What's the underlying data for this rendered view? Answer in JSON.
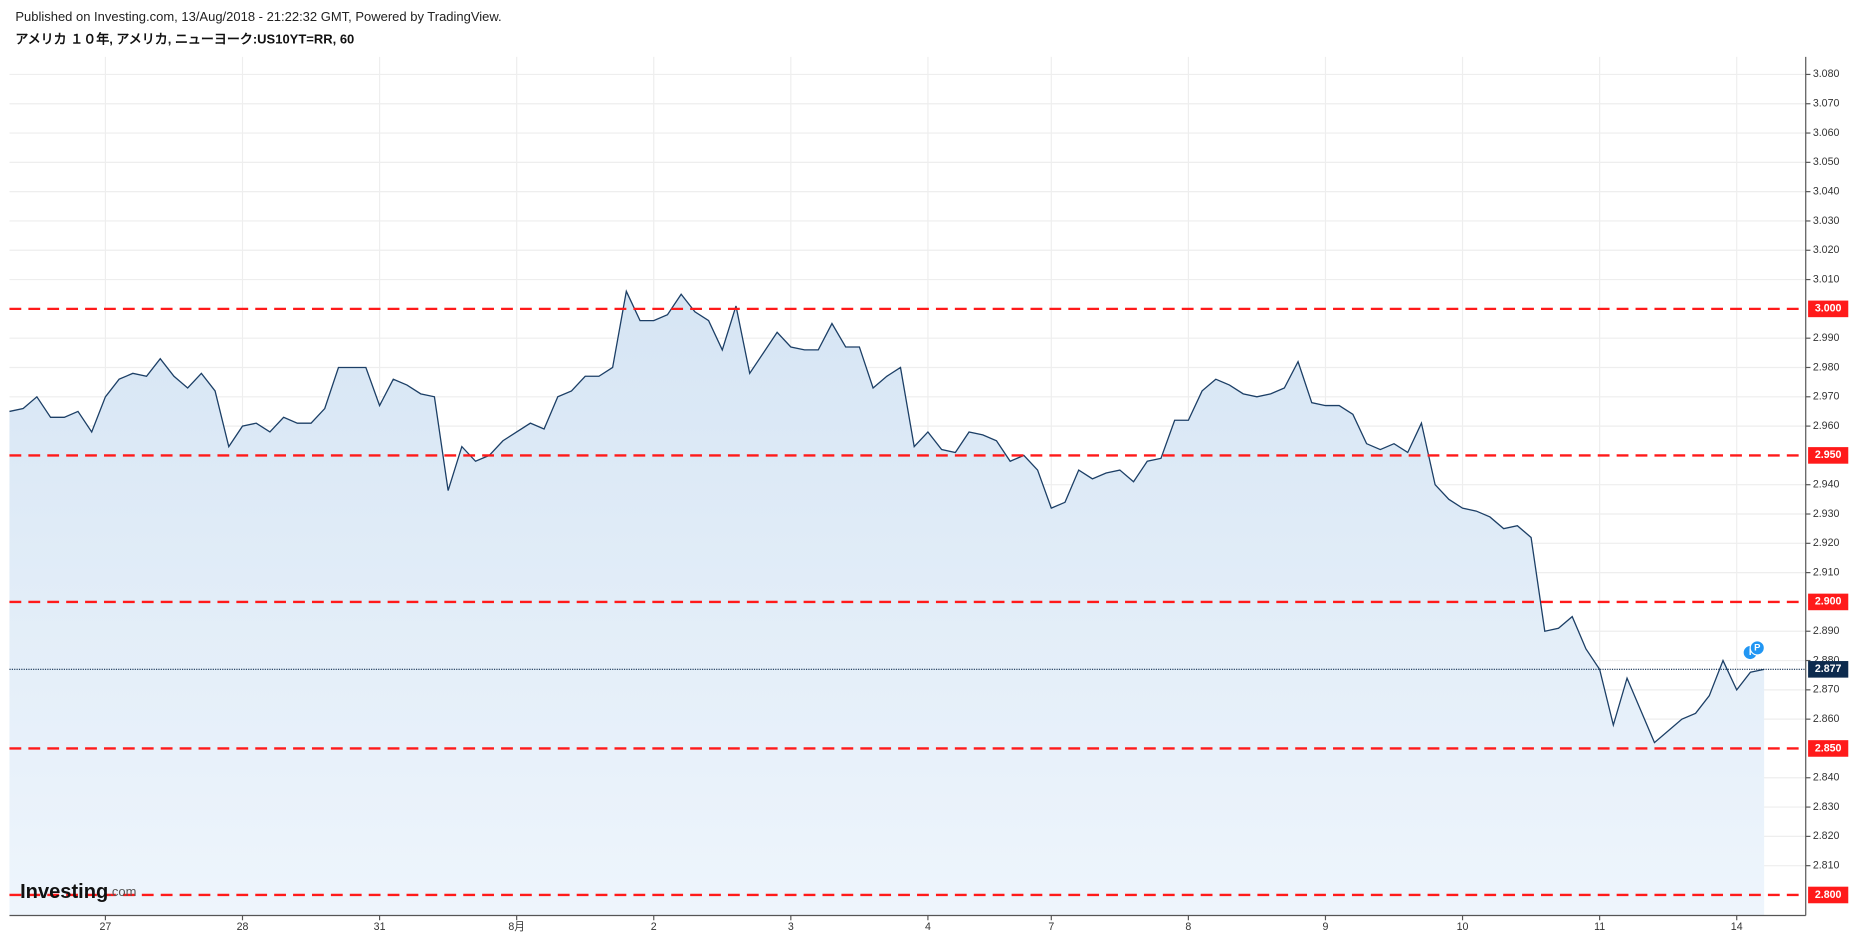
{
  "header": {
    "published": "Published on Investing.com, 13/Aug/2018 - 21:22:32 GMT, Powered by TradingView.",
    "symbol": "アメリカ １０年, アメリカ, ニューヨーク:US10YT=RR, 60"
  },
  "chart_data": {
    "type": "area",
    "color": "#1c3f66",
    "fill": "#dce9f6",
    "categories": [
      null,
      null,
      null,
      null,
      null,
      null,
      null,
      "27",
      null,
      null,
      null,
      null,
      null,
      null,
      null,
      null,
      null,
      "28",
      null,
      null,
      null,
      null,
      null,
      null,
      null,
      null,
      null,
      "31",
      null,
      null,
      null,
      null,
      null,
      null,
      null,
      null,
      null,
      "8月",
      null,
      null,
      null,
      null,
      null,
      null,
      null,
      null,
      null,
      "2",
      null,
      null,
      null,
      null,
      null,
      null,
      null,
      null,
      null,
      "3",
      null,
      null,
      null,
      null,
      null,
      null,
      null,
      null,
      null,
      "4",
      null,
      null,
      null,
      null,
      null,
      null,
      null,
      null,
      "7",
      null,
      null,
      null,
      null,
      null,
      null,
      null,
      null,
      null,
      "8",
      null,
      null,
      null,
      null,
      null,
      null,
      null,
      null,
      null,
      "9",
      null,
      null,
      null,
      null,
      null,
      null,
      null,
      null,
      null,
      "10",
      null,
      null,
      null,
      null,
      null,
      null,
      null,
      null,
      null,
      "11",
      null,
      null,
      null,
      null,
      null,
      null,
      null,
      null,
      null,
      "14",
      null,
      null
    ],
    "values": [
      2.965,
      2.966,
      2.97,
      2.963,
      2.963,
      2.965,
      2.958,
      2.97,
      2.976,
      2.978,
      2.977,
      2.983,
      2.977,
      2.973,
      2.978,
      2.972,
      2.953,
      2.96,
      2.961,
      2.958,
      2.963,
      2.961,
      2.961,
      2.966,
      2.98,
      2.98,
      2.98,
      2.967,
      2.976,
      2.974,
      2.971,
      2.97,
      2.938,
      2.953,
      2.948,
      2.95,
      2.955,
      2.958,
      2.961,
      2.959,
      2.97,
      2.972,
      2.977,
      2.977,
      2.98,
      3.006,
      2.996,
      2.996,
      2.998,
      3.005,
      2.999,
      2.996,
      2.986,
      3.001,
      2.978,
      2.985,
      2.992,
      2.987,
      2.986,
      2.986,
      2.995,
      2.987,
      2.987,
      2.973,
      2.977,
      2.98,
      2.953,
      2.958,
      2.952,
      2.951,
      2.958,
      2.957,
      2.955,
      2.948,
      2.95,
      2.945,
      2.932,
      2.934,
      2.945,
      2.942,
      2.944,
      2.945,
      2.941,
      2.948,
      2.949,
      2.962,
      2.962,
      2.972,
      2.976,
      2.974,
      2.971,
      2.97,
      2.971,
      2.973,
      2.982,
      2.968,
      2.967,
      2.967,
      2.964,
      2.954,
      2.952,
      2.954,
      2.951,
      2.961,
      2.94,
      2.935,
      2.932,
      2.931,
      2.929,
      2.925,
      2.926,
      2.922,
      2.89,
      2.891,
      2.895,
      2.884,
      2.877,
      2.858,
      2.874,
      2.863,
      2.852,
      2.856,
      2.86,
      2.862,
      2.868,
      2.88,
      2.87,
      2.876,
      2.877
    ],
    "ylim": [
      2.793,
      3.086
    ],
    "yticks": [
      {
        "value": 2.81,
        "label": "2.810"
      },
      {
        "value": 2.82,
        "label": "2.820"
      },
      {
        "value": 2.83,
        "label": "2.830"
      },
      {
        "value": 2.84,
        "label": "2.840"
      },
      {
        "value": 2.86,
        "label": "2.860"
      },
      {
        "value": 2.87,
        "label": "2.870"
      },
      {
        "value": 2.88,
        "label": "2.880"
      },
      {
        "value": 2.89,
        "label": "2.890"
      },
      {
        "value": 2.91,
        "label": "2.910"
      },
      {
        "value": 2.92,
        "label": "2.920"
      },
      {
        "value": 2.93,
        "label": "2.930"
      },
      {
        "value": 2.94,
        "label": "2.940"
      },
      {
        "value": 2.96,
        "label": "2.960"
      },
      {
        "value": 2.97,
        "label": "2.970"
      },
      {
        "value": 2.98,
        "label": "2.980"
      },
      {
        "value": 2.99,
        "label": "2.990"
      },
      {
        "value": 3.01,
        "label": "3.010"
      },
      {
        "value": 3.02,
        "label": "3.020"
      },
      {
        "value": 3.03,
        "label": "3.030"
      },
      {
        "value": 3.04,
        "label": "3.040"
      },
      {
        "value": 3.05,
        "label": "3.050"
      },
      {
        "value": 3.06,
        "label": "3.060"
      },
      {
        "value": 3.07,
        "label": "3.070"
      },
      {
        "value": 3.08,
        "label": "3.080"
      }
    ],
    "levels": [
      {
        "value": 3.0,
        "label": "3.000"
      },
      {
        "value": 2.95,
        "label": "2.950"
      },
      {
        "value": 2.9,
        "label": "2.900"
      },
      {
        "value": 2.85,
        "label": "2.850"
      },
      {
        "value": 2.8,
        "label": "2.800"
      }
    ],
    "level_color": "#ff1a1a",
    "current_price": {
      "value": 2.877,
      "label": "2.877"
    },
    "markers": [
      "I",
      "P"
    ],
    "grid": true,
    "watermark": {
      "brand": "Investing",
      "suffix": ".com"
    }
  }
}
